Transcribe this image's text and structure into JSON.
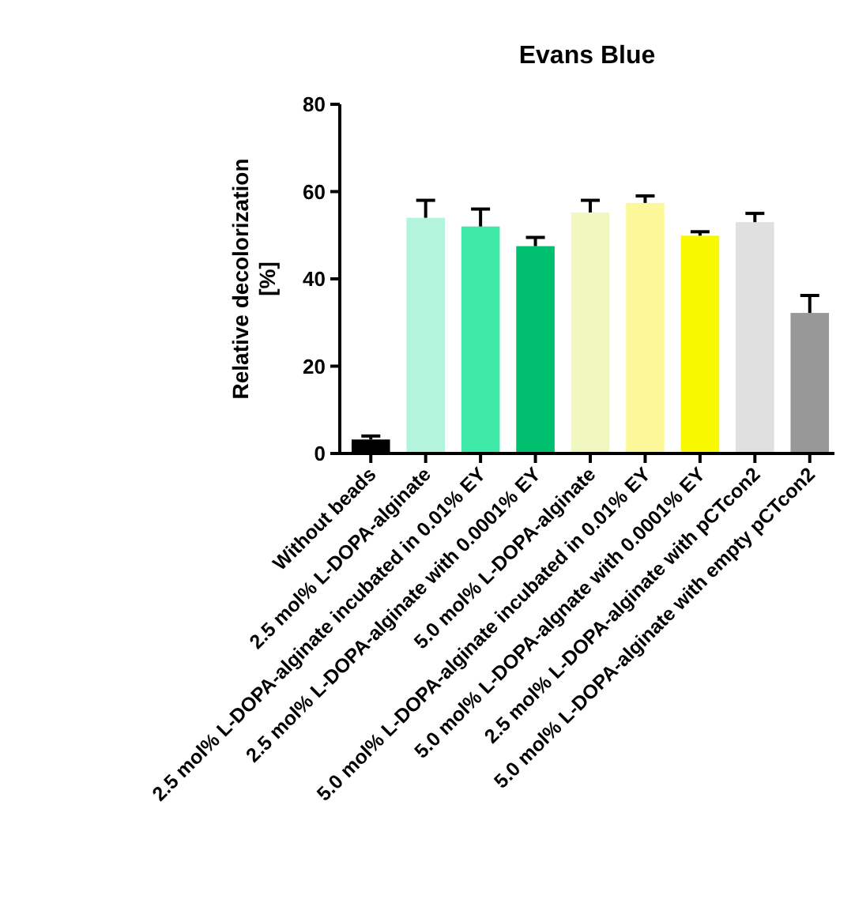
{
  "chart_data": {
    "type": "bar",
    "title": "Evans Blue",
    "ylabel": "Relative decolorization\n[%]",
    "categories": [
      "Without beads",
      "2.5 mol% L-DOPA-alginate",
      "2.5 mol% L-DOPA-alginate incubated in 0.01% EY",
      "2.5 mol% L-DOPA-alginate with 0.0001% EY",
      "5.0 mol% L-DOPA-alginate",
      "5.0 mol% L-DOPA-alginate incubated in 0.01% EY",
      "5.0 mol% L-DOPA-algnate with 0.0001% EY",
      "2.5 mol% L-DOPA-alginate with pCTcon2",
      "5.0 mol% L-DOPA-alginate with empty pCTcon2"
    ],
    "values": [
      3.2,
      54,
      52,
      47.5,
      55.2,
      57.4,
      49.9,
      53,
      32.2
    ],
    "errors": [
      [
        3.2,
        4
      ],
      [
        54,
        58
      ],
      [
        52,
        56
      ],
      [
        47.5,
        49.5
      ],
      [
        55.2,
        58
      ],
      [
        57.4,
        59
      ],
      [
        49.9,
        50.8
      ],
      [
        53,
        55
      ],
      [
        32.2,
        36.2
      ]
    ],
    "colors": [
      "#000000",
      "#b3f5dc",
      "#3ee8a6",
      "#00c070",
      "#f0f8c0",
      "#fcf89a",
      "#f8f800",
      "#e0e0e0",
      "#989898"
    ],
    "ylim": [
      0,
      80
    ],
    "yticks": [
      0,
      20,
      40,
      60,
      80
    ],
    "grid": false
  }
}
